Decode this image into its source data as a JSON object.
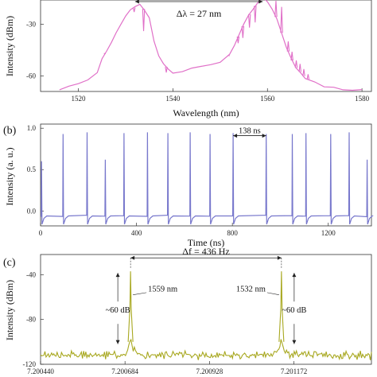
{
  "chart_data": [
    {
      "type": "line",
      "panel_label": "",
      "xlabel": "Wavelength (nm)",
      "ylabel": "Intensity (dBm)",
      "xlim": [
        1512,
        1582
      ],
      "ylim": [
        -69,
        -16
      ],
      "xticks": [
        "1520",
        "1540",
        "1560",
        "1580"
      ],
      "xtick_values": [
        1520,
        1540,
        1560,
        1580
      ],
      "yticks": [
        "-30",
        "-60"
      ],
      "ytick_values": [
        -30,
        -60
      ],
      "color": "#e070c8",
      "annotation": {
        "text": "Δλ = 27 nm",
        "from": 1532,
        "to": 1559,
        "y": -16
      },
      "x": [
        1516,
        1518,
        1520,
        1522,
        1524,
        1525,
        1526,
        1527,
        1528,
        1529,
        1530,
        1531,
        1532,
        1533,
        1534,
        1535,
        1536,
        1537,
        1538,
        1539,
        1540,
        1542,
        1544,
        1546,
        1548,
        1550,
        1552,
        1553,
        1554,
        1555,
        1556,
        1557,
        1558,
        1559,
        1560,
        1561,
        1562,
        1563,
        1564,
        1565,
        1566,
        1567,
        1568,
        1570,
        1572,
        1574,
        1576,
        1578,
        1580
      ],
      "values": [
        -68,
        -66,
        -64,
        -62,
        -58,
        -50,
        -45,
        -41,
        -35,
        -30,
        -25,
        -22,
        -20,
        -18,
        -22,
        -26,
        -40,
        -48,
        -53,
        -56,
        -58,
        -57,
        -56,
        -55,
        -53,
        -52,
        -48,
        -42,
        -36,
        -30,
        -25,
        -21,
        -17,
        -15,
        -17,
        -21,
        -27,
        -35,
        -43,
        -50,
        -55,
        -58,
        -61,
        -64,
        -66,
        -67,
        -68,
        -68,
        -68
      ],
      "spikes": [
        {
          "x": 1525.6,
          "y": -47
        },
        {
          "x": 1531.8,
          "y": -23
        },
        {
          "x": 1533.8,
          "y": -34
        },
        {
          "x": 1538.6,
          "y": -58
        },
        {
          "x": 1551.8,
          "y": -48
        },
        {
          "x": 1553.8,
          "y": -41
        },
        {
          "x": 1554.8,
          "y": -38
        },
        {
          "x": 1556.2,
          "y": -32
        },
        {
          "x": 1557.4,
          "y": -29
        },
        {
          "x": 1561.8,
          "y": -12
        },
        {
          "x": 1563.0,
          "y": -20
        },
        {
          "x": 1564.4,
          "y": -40
        },
        {
          "x": 1565.2,
          "y": -46
        },
        {
          "x": 1566.1,
          "y": -51
        },
        {
          "x": 1566.9,
          "y": -53
        },
        {
          "x": 1567.7,
          "y": -56
        },
        {
          "x": 1568.6,
          "y": -59
        }
      ]
    },
    {
      "type": "line",
      "panel_label": "(b)",
      "xlabel": "Time (ns)",
      "ylabel": "Intensity (a. u.)",
      "xlim": [
        0,
        1380
      ],
      "ylim": [
        -0.18,
        1.05
      ],
      "xticks": [
        "0",
        "400",
        "800",
        "1200"
      ],
      "xtick_values": [
        0,
        400,
        800,
        1200
      ],
      "yticks": [
        "1.0",
        "0.5",
        "0.0"
      ],
      "ytick_values": [
        1.0,
        0.5,
        0.0
      ],
      "color": "#7777cc",
      "annotation": {
        "text": "138 ns",
        "from": 803,
        "to": 941,
        "y": 0.91
      },
      "pulse_times": [
        4,
        94,
        194,
        270,
        348,
        446,
        531,
        624,
        707,
        803,
        941,
        1050,
        1107,
        1210,
        1287,
        1362
      ],
      "pulse_heights": [
        0.6,
        0.93,
        0.95,
        0.62,
        0.94,
        0.95,
        0.94,
        0.95,
        0.93,
        0.94,
        0.93,
        0.93,
        0.94,
        0.93,
        0.95,
        0.62
      ],
      "baseline": -0.06
    },
    {
      "type": "line",
      "panel_label": "(c)",
      "xlabel": "",
      "ylabel": "Intensity (dBm)",
      "xlim": [
        7.20044,
        7.201396
      ],
      "ylim": [
        -120,
        -22
      ],
      "xticks": [
        "7.200440",
        "7.200684",
        "7.200928",
        "7.201172"
      ],
      "xtick_values": [
        7.20044,
        7.200684,
        7.200928,
        7.201172
      ],
      "yticks": [
        "-40",
        "-80",
        "-120"
      ],
      "ytick_values": [
        -40,
        -80,
        -120
      ],
      "color": "#a8a820",
      "annotation": {
        "text": "Δf = 436 Hz",
        "from": 7.2007,
        "to": 7.201136,
        "y": -25
      },
      "peaks": [
        {
          "x": 7.2007,
          "y": -37,
          "label": "1559 nm",
          "db_label": "~60 dB"
        },
        {
          "x": 7.201136,
          "y": -37,
          "label": "1532 nm",
          "db_label": "~60 dB"
        }
      ],
      "noise_floor": -114
    }
  ]
}
